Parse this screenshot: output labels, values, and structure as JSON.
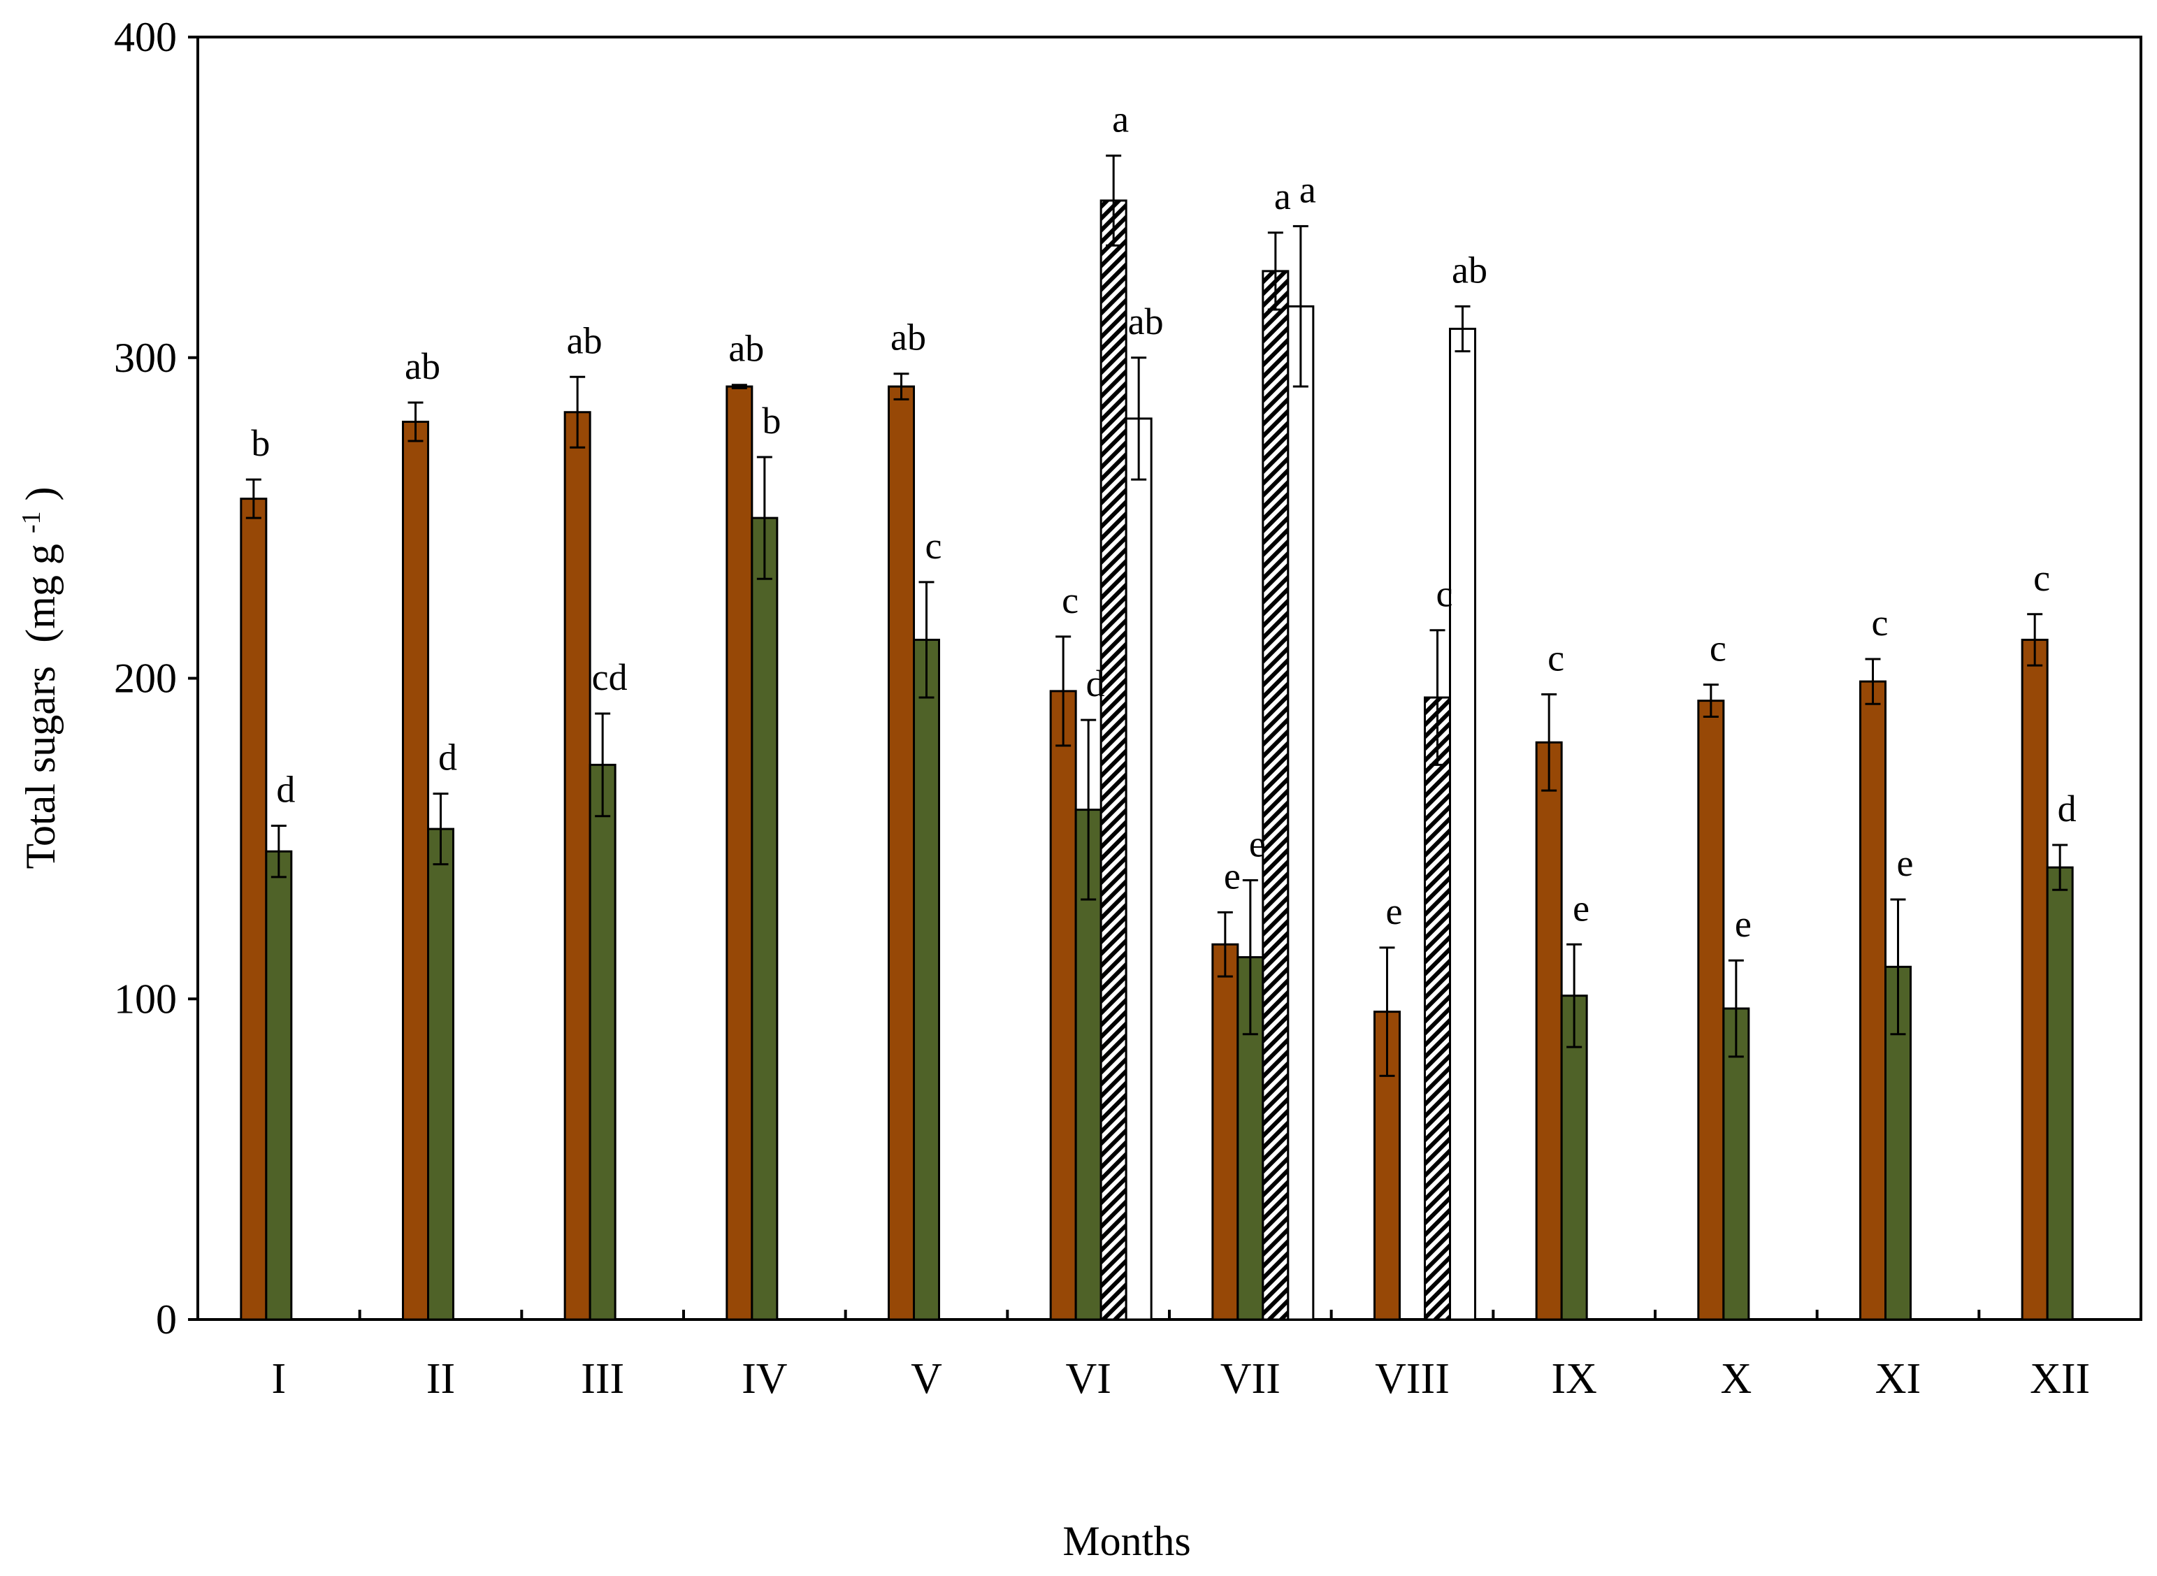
{
  "chart_data": {
    "type": "bar",
    "title": "",
    "xlabel": "Months",
    "ylabel_main": "Total sugars",
    "ylabel_unit": "(mg g",
    "ylabel_unit_sup": "-1",
    "ylabel_unit_close": ")",
    "ylim": [
      0,
      400
    ],
    "yticks": [
      0,
      100,
      200,
      300,
      400
    ],
    "grid": false,
    "legend": "none",
    "categories": [
      "I",
      "II",
      "III",
      "IV",
      "V",
      "VI",
      "VII",
      "VIII",
      "IX",
      "X",
      "XI",
      "XII"
    ],
    "series": [
      {
        "name": "series-1",
        "color": "#974806",
        "pattern": "solid",
        "values": [
          256,
          280,
          283,
          291,
          291,
          196,
          117,
          96,
          180,
          193,
          199,
          212
        ],
        "errors": [
          6,
          6,
          11,
          0.5,
          4,
          17,
          10,
          20,
          15,
          5,
          7,
          8
        ],
        "letters": [
          "b",
          "ab",
          "ab",
          "ab",
          "ab",
          "c",
          "e",
          "e",
          "c",
          "c",
          "c",
          "c"
        ]
      },
      {
        "name": "series-2",
        "color": "#4F6228",
        "pattern": "solid",
        "values": [
          146,
          153,
          173,
          250,
          212,
          159,
          113,
          null,
          101,
          97,
          110,
          141
        ],
        "errors": [
          8,
          11,
          16,
          19,
          18,
          28,
          24,
          null,
          16,
          15,
          21,
          7
        ],
        "letters": [
          "d",
          "d",
          "cd",
          "b",
          "c",
          "d",
          "e",
          null,
          "e",
          "e",
          "e",
          "d"
        ]
      },
      {
        "name": "series-3",
        "color": "#000000",
        "pattern": "hatched",
        "values": [
          null,
          null,
          null,
          null,
          null,
          349,
          327,
          194,
          null,
          null,
          null,
          null
        ],
        "errors": [
          null,
          null,
          null,
          null,
          null,
          14,
          12,
          21,
          null,
          null,
          null,
          null
        ],
        "letters": [
          null,
          null,
          null,
          null,
          null,
          "a",
          "a",
          "c",
          null,
          null,
          null,
          null
        ]
      },
      {
        "name": "series-4",
        "color": "#ffffff",
        "pattern": "open",
        "values": [
          null,
          null,
          null,
          null,
          null,
          281,
          316,
          309,
          null,
          null,
          null,
          null
        ],
        "errors": [
          null,
          null,
          null,
          null,
          null,
          19,
          25,
          7,
          null,
          null,
          null,
          null
        ],
        "letters": [
          null,
          null,
          null,
          null,
          null,
          "ab",
          "a",
          "ab",
          null,
          null,
          null,
          null
        ]
      }
    ]
  }
}
